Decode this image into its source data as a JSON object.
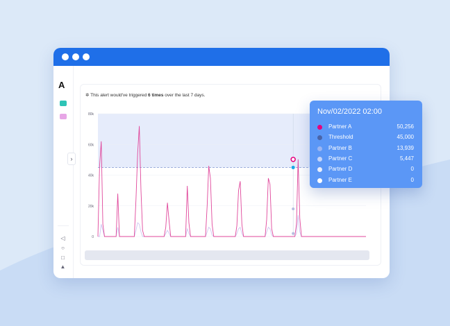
{
  "alert": {
    "prefix": "This alert would've triggered ",
    "count": "6 times",
    "suffix": " over the last 7 days."
  },
  "colors": {
    "accent": "#1f6fe8",
    "tooltip_bg": "#5b97f6",
    "threshold_fill": "#e6ecfb",
    "series_primary": "#e0479b"
  },
  "sidebar": {
    "logo": "A",
    "icons": [
      "chart-icon",
      "calendar-icon"
    ],
    "bottom_icons": [
      "megaphone-icon",
      "help-icon",
      "plug-icon",
      "user-icon"
    ]
  },
  "tooltip": {
    "title": "Nov/02/2022 02:00",
    "rows": [
      {
        "name": "Partner A",
        "value": "50,256",
        "color": "#e6007e"
      },
      {
        "name": "Threshold",
        "value": "45,000",
        "color": "#4a64a8"
      },
      {
        "name": "Partner B",
        "value": "13,939",
        "color": "#9bb5f2"
      },
      {
        "name": "Partner C",
        "value": "5,447",
        "color": "#c3d4fa"
      },
      {
        "name": "Partner D",
        "value": "0",
        "color": "#e8eefc"
      },
      {
        "name": "Partner E",
        "value": "0",
        "color": "#ffffff"
      }
    ]
  },
  "chart_data": {
    "type": "line",
    "ytick_labels": [
      "80k",
      "60k",
      "40k",
      "20k",
      "0"
    ],
    "ylim": [
      0,
      80000
    ],
    "threshold": 45000,
    "series": [
      {
        "color": "#e0479b",
        "values": [
          0,
          46000,
          62000,
          8000,
          0,
          0,
          0,
          0,
          0,
          0,
          0,
          0,
          28000,
          0,
          0,
          0,
          0,
          0,
          0,
          0,
          0,
          0,
          0,
          24000,
          54000,
          72000,
          30000,
          4000,
          0,
          0,
          0,
          0,
          0,
          0,
          0,
          0,
          0,
          0,
          0,
          0,
          0,
          6000,
          22000,
          10000,
          0,
          0,
          0,
          0,
          0,
          0,
          0,
          0,
          0,
          0,
          33000,
          9000,
          0,
          0,
          0,
          0,
          0,
          0,
          0,
          0,
          0,
          0,
          20000,
          46000,
          38000,
          8000,
          0,
          0,
          0,
          0,
          0,
          0,
          0,
          0,
          0,
          0,
          0,
          0,
          0,
          0,
          7000,
          30000,
          36000,
          8000,
          0,
          0,
          0,
          0,
          0,
          0,
          0,
          0,
          0,
          0,
          0,
          0,
          0,
          0,
          11000,
          38000,
          34000,
          5000,
          0,
          0,
          0,
          0,
          0,
          0,
          0,
          0,
          0,
          0,
          0,
          0,
          0,
          0,
          8000,
          50256,
          12000,
          0,
          0,
          0,
          0,
          0,
          0,
          0,
          0,
          0,
          0,
          0,
          0,
          0,
          0,
          0,
          0,
          0,
          0,
          0,
          0,
          0,
          0,
          0,
          0,
          0,
          0,
          0,
          0,
          0,
          0,
          0,
          0,
          0,
          0,
          0,
          0,
          0,
          0,
          0,
          0
        ]
      },
      {
        "color": "#cfc6f2",
        "values": [
          0,
          0,
          8000,
          4000,
          0,
          0,
          0,
          0,
          0,
          0,
          0,
          0,
          6000,
          0,
          0,
          0,
          0,
          0,
          0,
          0,
          0,
          0,
          0,
          4000,
          9000,
          8000,
          3000,
          0,
          0,
          0,
          0,
          0,
          0,
          0,
          0,
          0,
          0,
          0,
          0,
          0,
          0,
          2000,
          4000,
          2000,
          0,
          0,
          0,
          0,
          0,
          0,
          0,
          0,
          0,
          0,
          5000,
          2000,
          0,
          0,
          0,
          0,
          0,
          0,
          0,
          0,
          0,
          0,
          3000,
          6000,
          5000,
          1000,
          0,
          0,
          0,
          0,
          0,
          0,
          0,
          0,
          0,
          0,
          0,
          0,
          0,
          0,
          2000,
          5000,
          6000,
          2000,
          0,
          0,
          0,
          0,
          0,
          0,
          0,
          0,
          0,
          0,
          0,
          0,
          0,
          0,
          3000,
          6000,
          5000,
          1000,
          0,
          0,
          0,
          0,
          0,
          0,
          0,
          0,
          0,
          0,
          0,
          0,
          0,
          0,
          2000,
          13939,
          3000,
          0,
          0,
          0,
          0,
          0,
          0,
          0,
          0,
          0,
          0,
          0,
          0,
          0,
          0,
          0,
          0,
          0,
          0,
          0,
          0,
          0,
          0,
          0,
          0,
          0,
          0,
          0,
          0,
          0,
          0,
          0,
          0,
          0,
          0,
          0,
          0,
          0,
          0,
          0,
          0
        ]
      }
    ],
    "legend_colors": [
      "#1c2a8f",
      "#1aa7e8",
      "#e6007e",
      "#13b98a",
      "#c94be0"
    ]
  }
}
